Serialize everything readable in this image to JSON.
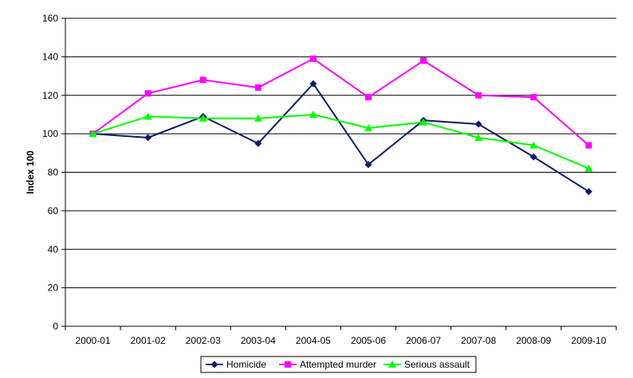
{
  "chart_data": {
    "type": "line",
    "title": "",
    "xlabel": "",
    "ylabel": "Index 100",
    "ylim": [
      0,
      160
    ],
    "yticks": [
      0,
      20,
      40,
      60,
      80,
      100,
      120,
      140,
      160
    ],
    "grid": true,
    "legend_position": "bottom",
    "categories": [
      "2000-01",
      "2001-02",
      "2002-03",
      "2003-04",
      "2004-05",
      "2005-06",
      "2006-07",
      "2007-08",
      "2008-09",
      "2009-10"
    ],
    "series": [
      {
        "name": "Homicide",
        "color": "#0c1b6b",
        "marker": "diamond",
        "values": [
          100,
          98,
          109,
          95,
          126,
          84,
          107,
          105,
          88,
          70
        ]
      },
      {
        "name": "Attempted murder",
        "color": "#ff00ff",
        "marker": "square",
        "values": [
          100,
          121,
          128,
          124,
          139,
          119,
          138,
          120,
          119,
          94
        ]
      },
      {
        "name": "Serious assault",
        "color": "#00ff00",
        "marker": "triangle",
        "values": [
          100,
          109,
          108,
          108,
          110,
          103,
          106,
          98,
          94,
          82
        ]
      }
    ]
  }
}
